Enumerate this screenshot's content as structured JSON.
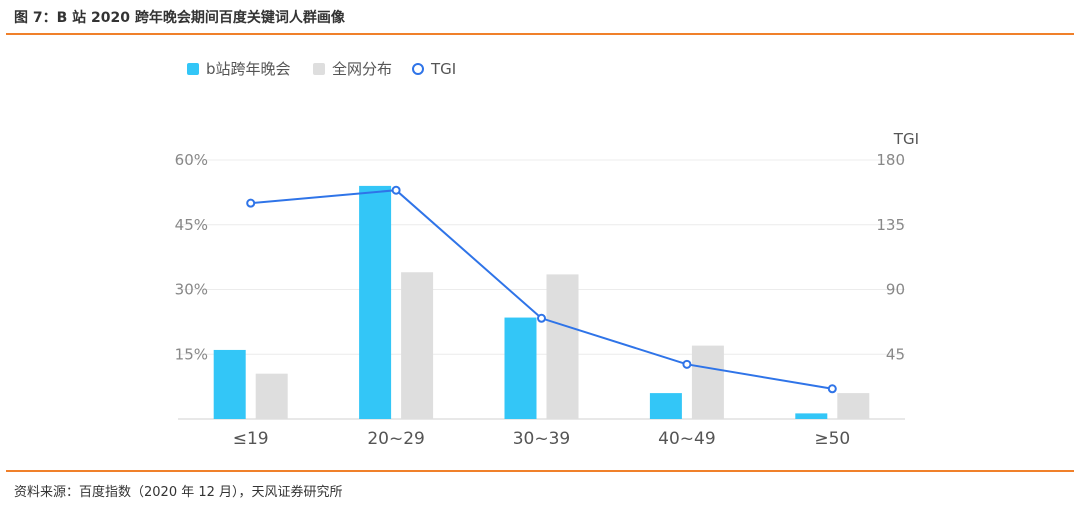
{
  "header": {
    "title": "图 7：B 站 2020 跨年晚会期间百度关键词人群画像"
  },
  "footer": {
    "source": "资料来源：百度指数（2020 年 12 月），天风证券研究所"
  },
  "colors": {
    "accent_rule": "#f0802a",
    "bilibili": "#33c6f7",
    "all": "#dedede",
    "tgi": "#2f74e8"
  },
  "chart_data": {
    "type": "bar",
    "categories": [
      "≤19",
      "20~29",
      "30~39",
      "40~49",
      "≥50"
    ],
    "series": [
      {
        "name": "b站跨年晚会",
        "kind": "bar",
        "axis": "left",
        "values": [
          16,
          54,
          23.5,
          6,
          1.3
        ]
      },
      {
        "name": "全网分布",
        "kind": "bar",
        "axis": "left",
        "values": [
          10.5,
          34,
          33.5,
          17,
          6
        ]
      },
      {
        "name": "TGI",
        "kind": "line",
        "axis": "right",
        "values": [
          150,
          159,
          70,
          38,
          21
        ]
      }
    ],
    "y_left": {
      "ylim": [
        0,
        60
      ],
      "ticks": [
        "15%",
        "30%",
        "45%",
        "60%"
      ],
      "tick_values": [
        15,
        30,
        45,
        60
      ]
    },
    "y_right": {
      "label": "TGI",
      "ylim": [
        0,
        180
      ],
      "ticks": [
        "45",
        "90",
        "135",
        "180"
      ],
      "tick_values": [
        45,
        90,
        135,
        180
      ]
    },
    "legend": {
      "position": "top-left",
      "entries": [
        "b站跨年晚会",
        "全网分布",
        "TGI"
      ]
    },
    "grid": true
  }
}
